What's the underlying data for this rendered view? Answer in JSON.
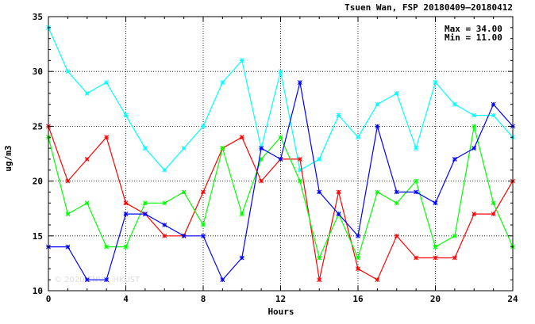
{
  "chart_data": {
    "type": "line",
    "title": "Tsuen Wan, FSP 20180409–20180412",
    "xlabel": "Hours",
    "ylabel": "ug/m3",
    "xlim": [
      0,
      24
    ],
    "ylim": [
      10,
      35
    ],
    "x_ticks": [
      0,
      4,
      8,
      12,
      16,
      20,
      24
    ],
    "y_ticks": [
      10,
      15,
      20,
      25,
      30,
      35
    ],
    "grid": true,
    "max_label": "Max = 34.00",
    "min_label": "Min = 11.00",
    "watermark": "© 2020 ENVF, HKUST",
    "x": [
      0,
      1,
      2,
      3,
      4,
      5,
      6,
      7,
      8,
      9,
      10,
      11,
      12,
      13,
      14,
      15,
      16,
      17,
      18,
      19,
      20,
      21,
      22,
      23,
      24
    ],
    "series": [
      {
        "color": "#00ffff",
        "values": [
          34,
          30,
          28,
          29,
          26,
          23,
          21,
          23,
          25,
          29,
          31,
          23,
          30,
          21,
          22,
          26,
          24,
          27,
          28,
          23,
          29,
          27,
          26,
          26,
          24
        ]
      },
      {
        "color": "#ff0000",
        "values": [
          25,
          20,
          22,
          24,
          18,
          17,
          15,
          15,
          19,
          23,
          24,
          20,
          22,
          22,
          11,
          19,
          12,
          11,
          15,
          13,
          13,
          13,
          17,
          17,
          20
        ]
      },
      {
        "color": "#00ff00",
        "values": [
          24,
          17,
          18,
          14,
          14,
          18,
          18,
          19,
          16,
          23,
          17,
          22,
          24,
          20,
          13,
          17,
          13,
          19,
          18,
          20,
          14,
          15,
          25,
          18,
          14
        ]
      },
      {
        "color": "#0000ff",
        "values": [
          14,
          14,
          11,
          11,
          17,
          17,
          16,
          15,
          15,
          11,
          13,
          23,
          22,
          29,
          19,
          17,
          15,
          25,
          19,
          19,
          18,
          22,
          23,
          27,
          25
        ]
      }
    ]
  }
}
